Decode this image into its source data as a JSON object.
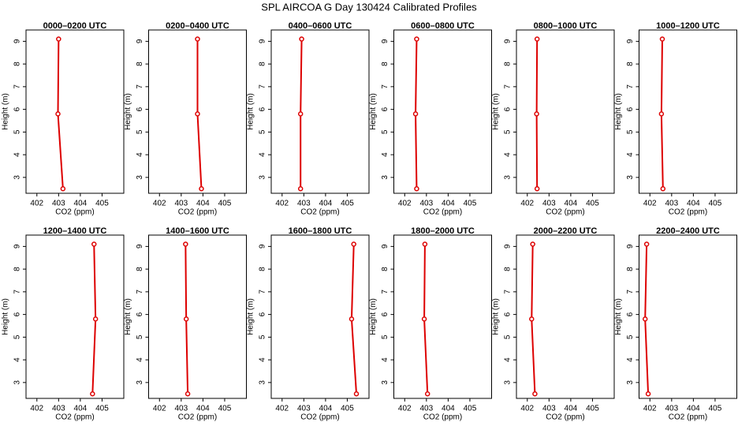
{
  "title": "SPL AIRCOA G  Day 130424  Calibrated Profiles",
  "chart_data": [
    {
      "type": "line",
      "title": "0000–0200 UTC",
      "x": [
        403.2,
        402.97,
        403.0
      ],
      "values": [
        2.5,
        5.8,
        9.1
      ],
      "color": "#dd0000",
      "xlabel": "CO2 (ppm)",
      "ylabel": "Height (m)",
      "xlim": [
        401.5,
        406
      ],
      "ylim": [
        2.3,
        9.5
      ],
      "xticks": [
        402,
        403,
        404,
        405
      ],
      "yticks": [
        3,
        4,
        5,
        6,
        7,
        8,
        9
      ]
    },
    {
      "type": "line",
      "title": "0200–0400 UTC",
      "x": [
        403.93,
        403.75,
        403.75
      ],
      "values": [
        2.5,
        5.8,
        9.1
      ],
      "color": "#dd0000",
      "xlabel": "CO2 (ppm)",
      "ylabel": "Height (m)",
      "xlim": [
        401.5,
        406
      ],
      "ylim": [
        2.3,
        9.5
      ],
      "xticks": [
        402,
        403,
        404,
        405
      ],
      "yticks": [
        3,
        4,
        5,
        6,
        7,
        8,
        9
      ]
    },
    {
      "type": "line",
      "title": "0400–0600 UTC",
      "x": [
        402.85,
        402.85,
        402.9
      ],
      "values": [
        2.5,
        5.8,
        9.1
      ],
      "color": "#dd0000",
      "xlabel": "CO2 (ppm)",
      "ylabel": "Height (m)",
      "xlim": [
        401.5,
        406
      ],
      "ylim": [
        2.3,
        9.5
      ],
      "xticks": [
        402,
        403,
        404,
        405
      ],
      "yticks": [
        3,
        4,
        5,
        6,
        7,
        8,
        9
      ]
    },
    {
      "type": "line",
      "title": "0600–0800 UTC",
      "x": [
        402.55,
        402.5,
        402.55
      ],
      "values": [
        2.5,
        5.8,
        9.1
      ],
      "color": "#dd0000",
      "xlabel": "CO2 (ppm)",
      "ylabel": "Height (m)",
      "xlim": [
        401.5,
        406
      ],
      "ylim": [
        2.3,
        9.5
      ],
      "xticks": [
        402,
        403,
        404,
        405
      ],
      "yticks": [
        3,
        4,
        5,
        6,
        7,
        8,
        9
      ]
    },
    {
      "type": "line",
      "title": "0800–1000 UTC",
      "x": [
        402.45,
        402.43,
        402.45
      ],
      "values": [
        2.5,
        5.8,
        9.1
      ],
      "color": "#dd0000",
      "xlabel": "CO2 (ppm)",
      "ylabel": "Height (m)",
      "xlim": [
        401.5,
        406
      ],
      "ylim": [
        2.3,
        9.5
      ],
      "xticks": [
        402,
        403,
        404,
        405
      ],
      "yticks": [
        3,
        4,
        5,
        6,
        7,
        8,
        9
      ]
    },
    {
      "type": "line",
      "title": "1000–1200 UTC",
      "x": [
        402.6,
        402.53,
        402.57
      ],
      "values": [
        2.5,
        5.8,
        9.1
      ],
      "color": "#dd0000",
      "xlabel": "CO2 (ppm)",
      "ylabel": "Height (m)",
      "xlim": [
        401.5,
        406
      ],
      "ylim": [
        2.3,
        9.5
      ],
      "xticks": [
        402,
        403,
        404,
        405
      ],
      "yticks": [
        3,
        4,
        5,
        6,
        7,
        8,
        9
      ]
    },
    {
      "type": "line",
      "title": "1200–1400 UTC",
      "x": [
        404.56,
        404.7,
        404.63
      ],
      "values": [
        2.5,
        5.8,
        9.1
      ],
      "color": "#dd0000",
      "xlabel": "CO2 (ppm)",
      "ylabel": "Height (m)",
      "xlim": [
        401.5,
        406
      ],
      "ylim": [
        2.3,
        9.5
      ],
      "xticks": [
        402,
        403,
        404,
        405
      ],
      "yticks": [
        3,
        4,
        5,
        6,
        7,
        8,
        9
      ]
    },
    {
      "type": "line",
      "title": "1400–1600 UTC",
      "x": [
        403.3,
        403.23,
        403.2
      ],
      "values": [
        2.5,
        5.8,
        9.1
      ],
      "color": "#dd0000",
      "xlabel": "CO2 (ppm)",
      "ylabel": "Height (m)",
      "xlim": [
        401.5,
        406
      ],
      "ylim": [
        2.3,
        9.5
      ],
      "xticks": [
        402,
        403,
        404,
        405
      ],
      "yticks": [
        3,
        4,
        5,
        6,
        7,
        8,
        9
      ]
    },
    {
      "type": "line",
      "title": "1600–1800 UTC",
      "x": [
        405.42,
        405.2,
        405.3
      ],
      "values": [
        2.5,
        5.8,
        9.1
      ],
      "color": "#dd0000",
      "xlabel": "CO2 (ppm)",
      "ylabel": "Height (m)",
      "xlim": [
        401.5,
        406
      ],
      "ylim": [
        2.3,
        9.5
      ],
      "xticks": [
        402,
        403,
        404,
        405
      ],
      "yticks": [
        3,
        4,
        5,
        6,
        7,
        8,
        9
      ]
    },
    {
      "type": "line",
      "title": "1800–2000 UTC",
      "x": [
        403.05,
        402.9,
        402.93
      ],
      "values": [
        2.5,
        5.8,
        9.1
      ],
      "color": "#dd0000",
      "xlabel": "CO2 (ppm)",
      "ylabel": "Height (m)",
      "xlim": [
        401.5,
        406
      ],
      "ylim": [
        2.3,
        9.5
      ],
      "xticks": [
        402,
        403,
        404,
        405
      ],
      "yticks": [
        3,
        4,
        5,
        6,
        7,
        8,
        9
      ]
    },
    {
      "type": "line",
      "title": "2000–2200 UTC",
      "x": [
        402.35,
        402.2,
        402.25
      ],
      "values": [
        2.5,
        5.8,
        9.1
      ],
      "color": "#dd0000",
      "xlabel": "CO2 (ppm)",
      "ylabel": "Height (m)",
      "xlim": [
        401.5,
        406
      ],
      "ylim": [
        2.3,
        9.5
      ],
      "xticks": [
        402,
        403,
        404,
        405
      ],
      "yticks": [
        3,
        4,
        5,
        6,
        7,
        8,
        9
      ]
    },
    {
      "type": "line",
      "title": "2200–2400 UTC",
      "x": [
        401.92,
        401.78,
        401.85
      ],
      "values": [
        2.5,
        5.8,
        9.1
      ],
      "color": "#dd0000",
      "xlabel": "CO2 (ppm)",
      "ylabel": "Height (m)",
      "xlim": [
        401.5,
        406
      ],
      "ylim": [
        2.3,
        9.5
      ],
      "xticks": [
        402,
        403,
        404,
        405
      ],
      "yticks": [
        3,
        4,
        5,
        6,
        7,
        8,
        9
      ]
    }
  ]
}
